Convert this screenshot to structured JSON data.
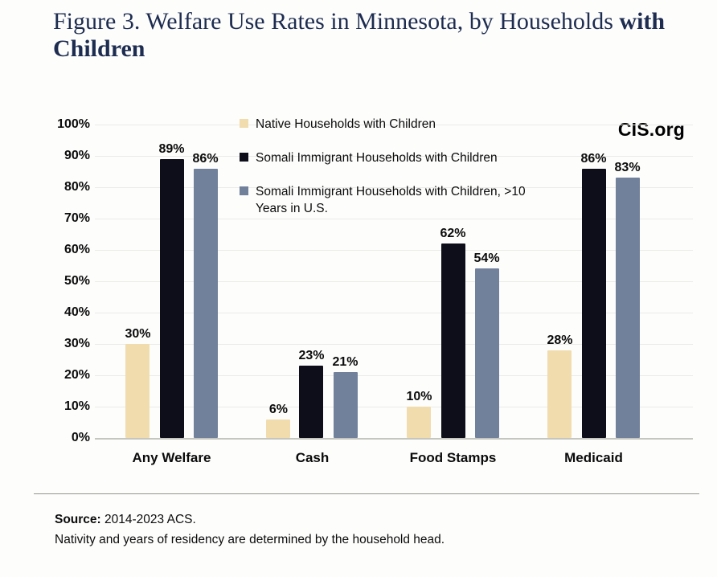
{
  "title": {
    "part1": "Figure 3. Welfare Use Rates in Minnesota, by Households",
    "part2": "with",
    "part3": "Children"
  },
  "watermark": "CIS.org",
  "chart_data": {
    "type": "bar",
    "title": "Figure 3. Welfare Use Rates in Minnesota, by Households with Children",
    "categories": [
      "Any Welfare",
      "Cash",
      "Food Stamps",
      "Medicaid"
    ],
    "series": [
      {
        "name": "Native Households with Children",
        "color": "#f1dcae",
        "values": [
          30,
          6,
          10,
          28
        ]
      },
      {
        "name": "Somali Immigrant Households with Children",
        "color": "#0e0e1b",
        "values": [
          89,
          23,
          62,
          86
        ]
      },
      {
        "name": "Somali Immigrant Households with Children, >10 Years in U.S.",
        "color": "#71809b",
        "values": [
          86,
          21,
          54,
          83
        ]
      }
    ],
    "value_suffix": "%",
    "ylim": [
      0,
      100
    ],
    "ytick_step": 10,
    "yticks": [
      "0%",
      "10%",
      "20%",
      "30%",
      "40%",
      "50%",
      "60%",
      "70%",
      "80%",
      "90%",
      "100%"
    ],
    "grid": true,
    "legend_position": "top-center",
    "data_labels": true
  },
  "footer": {
    "source_label": "Source:",
    "source_text": "2014-2023 ACS.",
    "note": "Nativity and years of residency are determined by the household head."
  }
}
